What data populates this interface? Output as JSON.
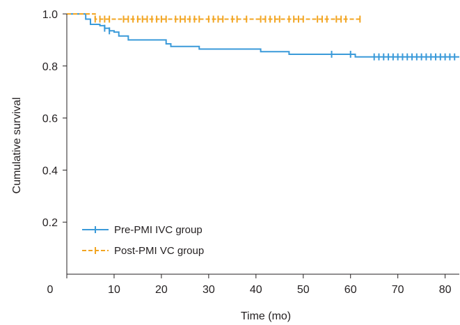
{
  "chart_data": {
    "type": "line",
    "subtype": "kaplan-meier survival curve",
    "title": "",
    "xlabel": "Time (mo)",
    "ylabel": "Cumulative survival",
    "xlim": [
      0,
      83
    ],
    "ylim": [
      0,
      1.0
    ],
    "xticks": [
      0,
      10,
      20,
      30,
      40,
      50,
      60,
      70,
      80
    ],
    "yticks": [
      0.2,
      0.4,
      0.6,
      0.8,
      1.0
    ],
    "x_tick_labels": [
      "0",
      "10",
      "20",
      "30",
      "40",
      "50",
      "60",
      "70",
      "80"
    ],
    "y_tick_labels": [
      "0.2",
      "0.4",
      "0.6",
      "0.8",
      "1.0"
    ],
    "grid": false,
    "legend_position": "bottom-left",
    "series": [
      {
        "name": "Pre-PMI IVC group",
        "color": "#3a9ad9",
        "line_style": "solid",
        "step_points": [
          [
            0,
            1.0
          ],
          [
            4,
            0.98
          ],
          [
            5,
            0.96
          ],
          [
            7,
            0.955
          ],
          [
            8,
            0.945
          ],
          [
            9,
            0.935
          ],
          [
            10,
            0.93
          ],
          [
            11,
            0.915
          ],
          [
            13,
            0.9
          ],
          [
            21,
            0.885
          ],
          [
            22,
            0.875
          ],
          [
            28,
            0.865
          ],
          [
            41,
            0.855
          ],
          [
            47,
            0.845
          ],
          [
            61,
            0.835
          ],
          [
            83,
            0.835
          ]
        ],
        "censor_times": [
          8,
          9,
          56,
          60,
          65,
          66,
          67,
          68,
          69,
          70,
          71,
          72,
          73,
          74,
          75,
          76,
          77,
          78,
          79,
          80,
          81,
          82
        ]
      },
      {
        "name": "Post-PMI VC group",
        "color": "#f2a522",
        "line_style": "dashed",
        "step_points": [
          [
            0,
            1.0
          ],
          [
            6,
            0.98
          ],
          [
            62,
            0.98
          ]
        ],
        "censor_times": [
          6,
          7,
          8,
          9,
          12,
          13,
          14,
          15,
          16,
          17,
          18,
          19,
          20,
          21,
          23,
          24,
          25,
          26,
          27,
          28,
          30,
          31,
          32,
          33,
          35,
          36,
          38,
          41,
          42,
          43,
          44,
          45,
          47,
          48,
          49,
          50,
          53,
          54,
          55,
          57,
          58,
          59,
          62
        ]
      }
    ]
  }
}
